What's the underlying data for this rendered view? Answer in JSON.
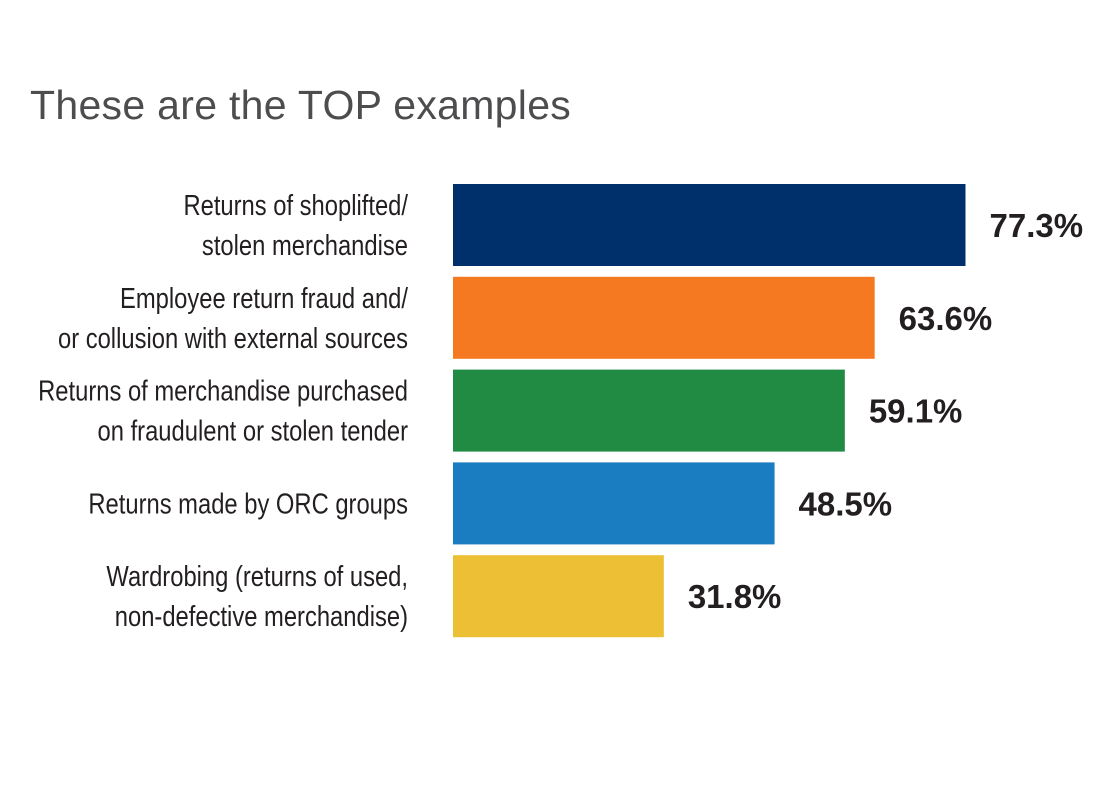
{
  "chart_data": {
    "type": "bar",
    "orientation": "horizontal",
    "title": "These are the TOP examples",
    "categories": [
      "Returns of shoplifted/\nstolen merchandise",
      "Employee return fraud and/\nor collusion with external sources",
      "Returns of merchandise purchased\non fraudulent or stolen tender",
      "Returns made by ORC groups",
      "Wardrobing (returns of used,\nnon-defective merchandise)"
    ],
    "values": [
      77.3,
      63.6,
      59.1,
      48.5,
      31.8
    ],
    "value_labels": [
      "77.3%",
      "63.6%",
      "59.1%",
      "48.5%",
      "31.8%"
    ],
    "colors": [
      "#00306b",
      "#f47920",
      "#218a43",
      "#1a7cc1",
      "#ecbf35"
    ],
    "xlim": [
      0,
      100
    ],
    "grid": false,
    "legend": "none"
  }
}
